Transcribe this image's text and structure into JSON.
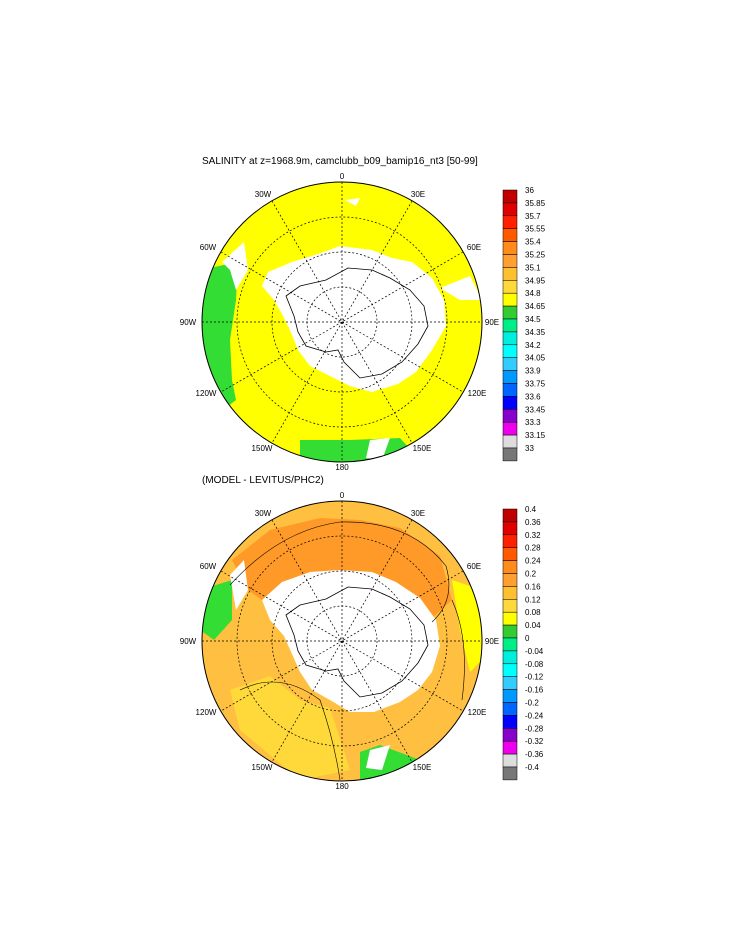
{
  "panels": [
    {
      "title": "SALINITY at z=1968.9m, camclubb_b09_bamip16_nt3 [50-99]",
      "colorbar_labels": [
        "36",
        "35.85",
        "35.7",
        "35.55",
        "35.4",
        "35.25",
        "35.1",
        "34.95",
        "34.8",
        "34.65",
        "34.5",
        "34.35",
        "34.2",
        "34.05",
        "33.9",
        "33.75",
        "33.6",
        "33.45",
        "33.3",
        "33.15",
        "33"
      ]
    },
    {
      "title": "(MODEL - LEVITUS/PHC2)",
      "colorbar_labels": [
        "0.4",
        "0.36",
        "0.32",
        "0.28",
        "0.24",
        "0.2",
        "0.16",
        "0.12",
        "0.08",
        "0.04",
        "0",
        "-0.04",
        "-0.08",
        "-0.12",
        "-0.16",
        "-0.2",
        "-0.24",
        "-0.28",
        "-0.32",
        "-0.36",
        "-0.4"
      ]
    }
  ],
  "longitude_labels": {
    "top": "0",
    "upper_right": "30E",
    "right_upper": "60E",
    "right": "90E",
    "lower_right": "120E",
    "bottom_right": "150E",
    "bottom": "180",
    "bottom_left": "150W",
    "lower_left": "120W",
    "left": "90W",
    "left_upper": "60W",
    "upper_left": "30W"
  },
  "colors": {
    "palette": [
      "#c00000",
      "#e00000",
      "#ff2000",
      "#ff5a00",
      "#ff8c1a",
      "#ff9f32",
      "#ffc030",
      "#ffd93a",
      "#ffff00",
      "#33cc33",
      "#00ee88",
      "#00eedd",
      "#00ffff",
      "#33ccff",
      "#0099ff",
      "#0066ff",
      "#0000ff",
      "#8800cc",
      "#ee00ee",
      "#dddddd",
      "#777777"
    ],
    "land": "#ffffff",
    "ice": "#ffffff",
    "panel1_ocean": "#ffff00",
    "panel1_coast": "#33dd33",
    "panel2_main": "#ffbf40",
    "panel2_dark": "#ff8c1a",
    "panel2_light": "#ffd93a"
  }
}
